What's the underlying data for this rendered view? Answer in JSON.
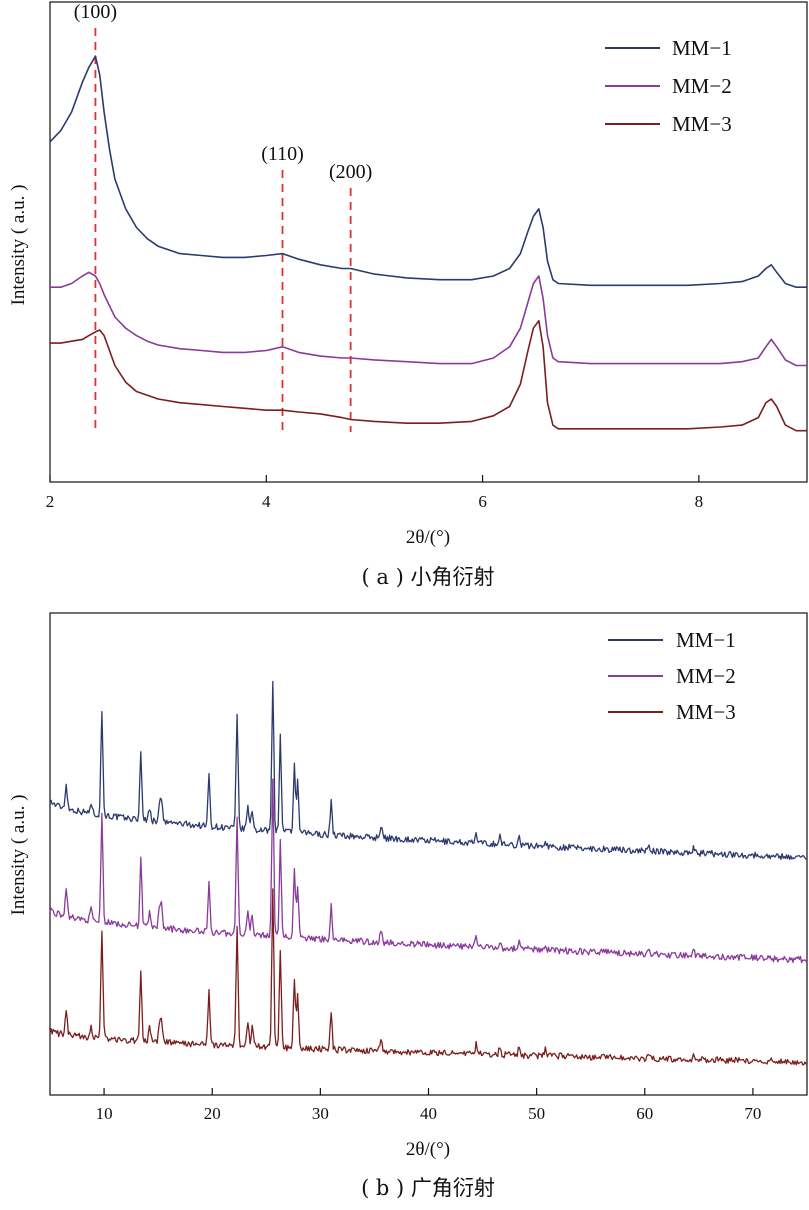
{
  "chart_data": [
    {
      "type": "line",
      "panel": "a",
      "caption": "( a ) 小角衍射",
      "xlabel": "2θ/(°)",
      "ylabel": "Intensity ( a.u. )",
      "xlim": [
        2,
        9
      ],
      "xticks": [
        2,
        4,
        6,
        8
      ],
      "tick_labels": [
        "2",
        "4",
        "6",
        "8"
      ],
      "grid": false,
      "legend_position": "top-right",
      "annotations": [
        {
          "text": "(100)",
          "x": 2.42
        },
        {
          "text": "(110)",
          "x": 4.15
        },
        {
          "text": "(200)",
          "x": 4.78
        }
      ],
      "series": [
        {
          "name": "MM−1",
          "color": "#2c3a6e",
          "x": [
            2.0,
            2.1,
            2.2,
            2.3,
            2.36,
            2.42,
            2.46,
            2.5,
            2.55,
            2.6,
            2.7,
            2.8,
            2.9,
            3.0,
            3.2,
            3.4,
            3.6,
            3.8,
            4.0,
            4.15,
            4.3,
            4.5,
            4.7,
            4.78,
            5.0,
            5.3,
            5.6,
            5.9,
            6.1,
            6.25,
            6.35,
            6.42,
            6.47,
            6.52,
            6.56,
            6.6,
            6.65,
            6.7,
            7.0,
            7.3,
            7.6,
            7.9,
            8.2,
            8.4,
            8.55,
            8.62,
            8.67,
            8.72,
            8.8,
            8.9,
            9.0
          ],
          "y": [
            0.8,
            0.83,
            0.88,
            0.96,
            1.0,
            1.03,
            0.98,
            0.88,
            0.78,
            0.7,
            0.62,
            0.57,
            0.54,
            0.52,
            0.5,
            0.495,
            0.49,
            0.49,
            0.495,
            0.5,
            0.485,
            0.47,
            0.46,
            0.46,
            0.445,
            0.435,
            0.43,
            0.43,
            0.44,
            0.46,
            0.5,
            0.56,
            0.6,
            0.62,
            0.57,
            0.48,
            0.43,
            0.42,
            0.415,
            0.415,
            0.415,
            0.415,
            0.42,
            0.425,
            0.44,
            0.46,
            0.47,
            0.45,
            0.42,
            0.41,
            0.41
          ]
        },
        {
          "name": "MM−2",
          "color": "#8a3a9a",
          "x": [
            2.0,
            2.1,
            2.2,
            2.3,
            2.36,
            2.42,
            2.46,
            2.5,
            2.55,
            2.6,
            2.7,
            2.8,
            2.9,
            3.0,
            3.2,
            3.4,
            3.6,
            3.8,
            4.0,
            4.15,
            4.3,
            4.5,
            4.7,
            4.78,
            5.0,
            5.3,
            5.6,
            5.9,
            6.1,
            6.25,
            6.35,
            6.42,
            6.47,
            6.52,
            6.56,
            6.6,
            6.65,
            6.7,
            7.0,
            7.3,
            7.6,
            7.9,
            8.2,
            8.4,
            8.55,
            8.62,
            8.67,
            8.72,
            8.8,
            8.9,
            9.0
          ],
          "y": [
            0.41,
            0.41,
            0.42,
            0.44,
            0.45,
            0.44,
            0.42,
            0.39,
            0.36,
            0.33,
            0.3,
            0.28,
            0.265,
            0.255,
            0.245,
            0.24,
            0.235,
            0.235,
            0.24,
            0.25,
            0.235,
            0.225,
            0.22,
            0.22,
            0.215,
            0.21,
            0.205,
            0.205,
            0.22,
            0.25,
            0.3,
            0.37,
            0.42,
            0.44,
            0.38,
            0.28,
            0.22,
            0.21,
            0.205,
            0.205,
            0.205,
            0.205,
            0.205,
            0.21,
            0.22,
            0.25,
            0.27,
            0.25,
            0.215,
            0.2,
            0.2
          ]
        },
        {
          "name": "MM−3",
          "color": "#7a1e1e",
          "x": [
            2.0,
            2.1,
            2.2,
            2.3,
            2.36,
            2.42,
            2.46,
            2.5,
            2.55,
            2.6,
            2.7,
            2.8,
            2.9,
            3.0,
            3.2,
            3.4,
            3.6,
            3.8,
            4.0,
            4.15,
            4.3,
            4.5,
            4.7,
            4.78,
            5.0,
            5.3,
            5.6,
            5.9,
            6.1,
            6.25,
            6.35,
            6.42,
            6.47,
            6.52,
            6.56,
            6.6,
            6.65,
            6.7,
            7.0,
            7.3,
            7.6,
            7.9,
            8.2,
            8.4,
            8.55,
            8.62,
            8.67,
            8.72,
            8.8,
            8.9,
            9.0
          ],
          "y": [
            0.26,
            0.26,
            0.265,
            0.27,
            0.28,
            0.29,
            0.295,
            0.28,
            0.24,
            0.2,
            0.155,
            0.13,
            0.12,
            0.11,
            0.1,
            0.095,
            0.09,
            0.085,
            0.08,
            0.08,
            0.075,
            0.07,
            0.06,
            0.055,
            0.05,
            0.045,
            0.045,
            0.05,
            0.065,
            0.09,
            0.15,
            0.24,
            0.3,
            0.32,
            0.25,
            0.1,
            0.04,
            0.03,
            0.03,
            0.03,
            0.03,
            0.03,
            0.035,
            0.04,
            0.06,
            0.1,
            0.11,
            0.09,
            0.04,
            0.025,
            0.025
          ]
        }
      ]
    },
    {
      "type": "line",
      "panel": "b",
      "caption": "( b ) 广角衍射",
      "xlabel": "2θ/(°)",
      "ylabel": "Intensity ( a.u. )",
      "xlim": [
        5,
        75
      ],
      "xticks": [
        10,
        20,
        30,
        40,
        50,
        60,
        70
      ],
      "tick_labels": [
        "10",
        "20",
        "30",
        "40",
        "50",
        "60",
        "70"
      ],
      "grid": false,
      "legend_position": "top-right",
      "peaks": [
        {
          "x": 6.5,
          "h": 0.22
        },
        {
          "x": 8.8,
          "h": 0.1
        },
        {
          "x": 9.8,
          "h": 0.92
        },
        {
          "x": 13.4,
          "h": 0.62
        },
        {
          "x": 14.2,
          "h": 0.12
        },
        {
          "x": 15.1,
          "h": 0.14
        },
        {
          "x": 15.3,
          "h": 0.2
        },
        {
          "x": 19.7,
          "h": 0.45
        },
        {
          "x": 22.3,
          "h": 1.0
        },
        {
          "x": 23.3,
          "h": 0.22
        },
        {
          "x": 23.7,
          "h": 0.18
        },
        {
          "x": 25.6,
          "h": 1.35
        },
        {
          "x": 26.3,
          "h": 0.85
        },
        {
          "x": 27.6,
          "h": 0.6
        },
        {
          "x": 27.9,
          "h": 0.45
        },
        {
          "x": 31.0,
          "h": 0.3
        },
        {
          "x": 35.6,
          "h": 0.12
        },
        {
          "x": 44.4,
          "h": 0.08
        },
        {
          "x": 46.6,
          "h": 0.07
        },
        {
          "x": 48.4,
          "h": 0.08
        },
        {
          "x": 50.8,
          "h": 0.05
        },
        {
          "x": 60.4,
          "h": 0.04
        },
        {
          "x": 64.5,
          "h": 0.04
        }
      ],
      "series": [
        {
          "name": "MM−1",
          "color": "#2c3a6e",
          "baseline_start": 2.05,
          "baseline_end": 1.6,
          "scale": 0.88
        },
        {
          "name": "MM−2",
          "color": "#8a3a9a",
          "baseline_start": 1.2,
          "baseline_end": 0.8,
          "scale": 0.9
        },
        {
          "name": "MM−3",
          "color": "#7a1e1e",
          "baseline_start": 0.25,
          "baseline_end": 0.0,
          "scale": 0.92
        }
      ]
    }
  ]
}
